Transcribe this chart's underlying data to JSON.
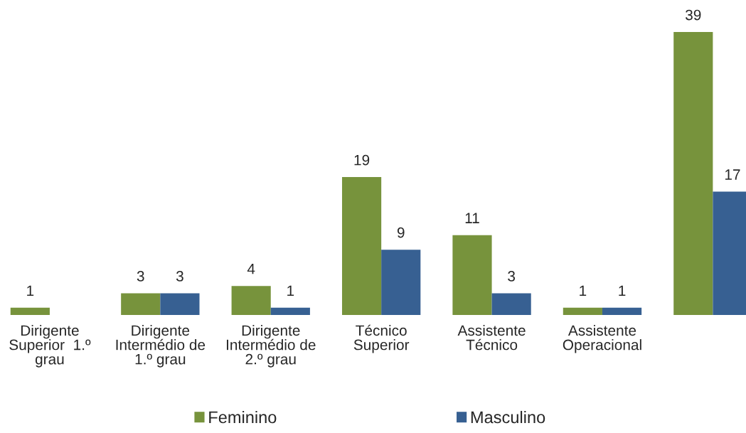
{
  "chart_data": {
    "type": "bar",
    "categories": [
      "Dirigente\nSuperior  1.º\ngrau",
      "Dirigente\nIntermédio de\n1.º grau",
      "Dirigente\nIntermédio de\n2.º grau",
      "Técnico\nSuperior",
      "Assistente\nTécnico",
      "Assistente\nOperacional",
      null
    ],
    "series": [
      {
        "name": "Feminino",
        "color": "#77933c",
        "values": [
          1,
          3,
          4,
          19,
          11,
          1,
          39
        ]
      },
      {
        "name": "Masculino",
        "color": "#376092",
        "values": [
          null,
          3,
          1,
          9,
          3,
          1,
          17
        ]
      }
    ],
    "data_labels": true,
    "legend": "bottom",
    "grid": false
  }
}
